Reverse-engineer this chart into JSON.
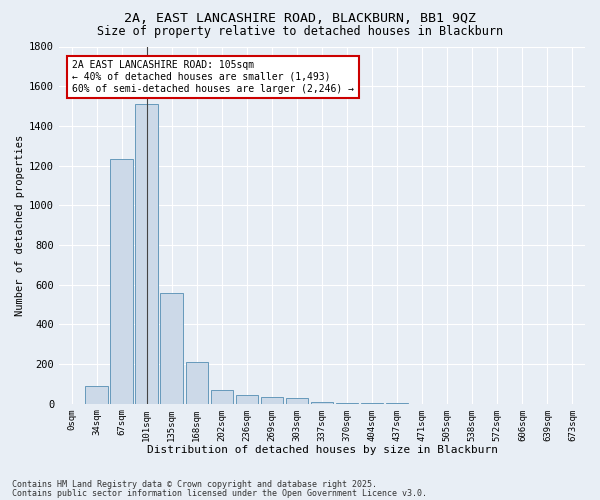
{
  "title_line1": "2A, EAST LANCASHIRE ROAD, BLACKBURN, BB1 9QZ",
  "title_line2": "Size of property relative to detached houses in Blackburn",
  "xlabel": "Distribution of detached houses by size in Blackburn",
  "ylabel": "Number of detached properties",
  "bar_labels": [
    "0sqm",
    "34sqm",
    "67sqm",
    "101sqm",
    "135sqm",
    "168sqm",
    "202sqm",
    "236sqm",
    "269sqm",
    "303sqm",
    "337sqm",
    "370sqm",
    "404sqm",
    "437sqm",
    "471sqm",
    "505sqm",
    "538sqm",
    "572sqm",
    "606sqm",
    "639sqm",
    "673sqm"
  ],
  "bar_values": [
    0,
    90,
    1235,
    1510,
    560,
    210,
    68,
    46,
    35,
    28,
    10,
    5,
    3,
    2,
    1,
    1,
    0,
    0,
    0,
    0,
    0
  ],
  "bar_color": "#ccd9e8",
  "bar_edge_color": "#6699bb",
  "ylim": [
    0,
    1800
  ],
  "yticks": [
    0,
    200,
    400,
    600,
    800,
    1000,
    1200,
    1400,
    1600,
    1800
  ],
  "annotation_text": "2A EAST LANCASHIRE ROAD: 105sqm\n← 40% of detached houses are smaller (1,493)\n60% of semi-detached houses are larger (2,246) →",
  "annotation_box_color": "#ffffff",
  "annotation_border_color": "#cc0000",
  "background_color": "#e8eef5",
  "grid_color": "#ffffff",
  "footer_line1": "Contains HM Land Registry data © Crown copyright and database right 2025.",
  "footer_line2": "Contains public sector information licensed under the Open Government Licence v3.0."
}
